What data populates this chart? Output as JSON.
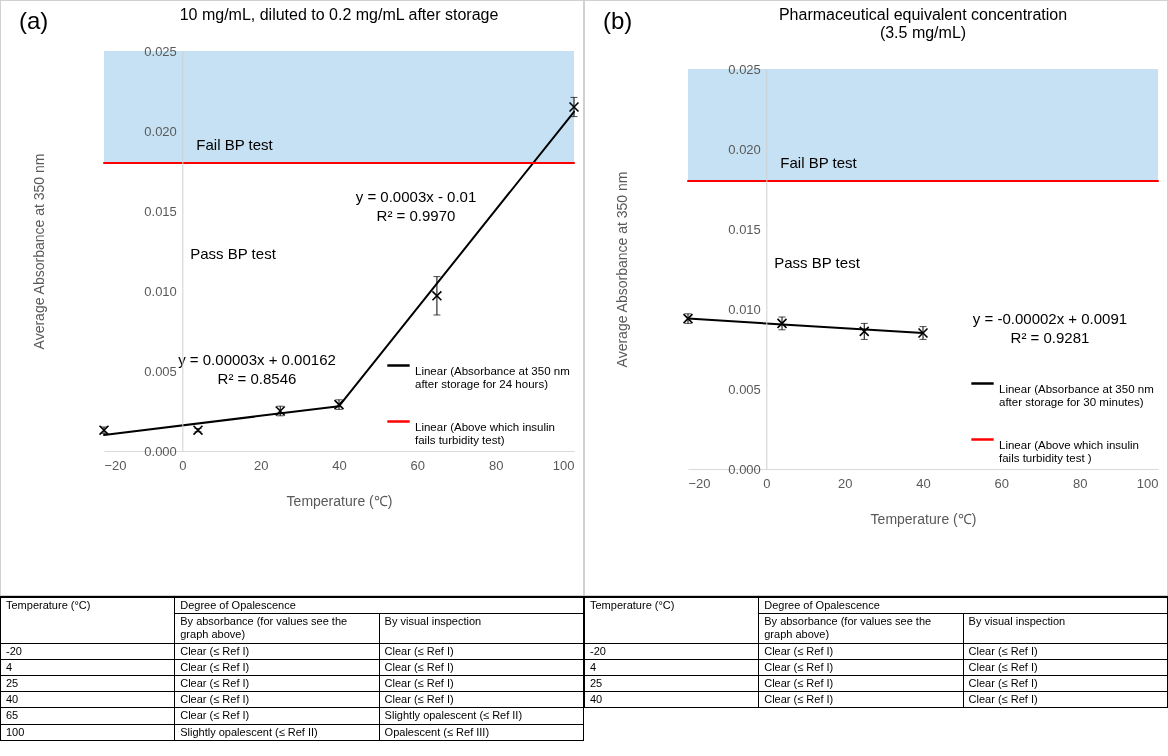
{
  "chart_data": [
    {
      "type": "scatter",
      "title": "10 mg/mL, diluted to 0.2 mg/mL after storage",
      "xlabel": "Temperature (℃)",
      "ylabel": "Average  Absorbance at 350 nm",
      "xlim": [
        -20,
        100
      ],
      "xticks": [
        -20,
        0,
        20,
        40,
        60,
        80,
        100
      ],
      "ylim": [
        0,
        0.025
      ],
      "yticks": [
        {
          "value": 0,
          "label": "0.000"
        },
        {
          "value": 0.005,
          "label": "0.005"
        },
        {
          "value": 0.01,
          "label": "0.010"
        },
        {
          "value": 0.015,
          "label": "0.015"
        },
        {
          "value": 0.02,
          "label": "0.020"
        },
        {
          "value": 0.025,
          "label": "0.025"
        }
      ],
      "legend": "bottom right",
      "bands": [
        {
          "axis": "y",
          "from": 0.018,
          "to": 0.025,
          "label": "Fail BP test",
          "color": "#c5e1f3"
        }
      ],
      "annotations": [
        "(a)",
        "Pass BP test",
        "y = 0.0003x - 0.01",
        "R² = 0.9970",
        "y = 0.00003x + 0.00162",
        "R² = 0.8546"
      ],
      "series": [
        {
          "type": "scatter",
          "color": "#000000",
          "marker": "cross",
          "x": [
            -20,
            4,
            25,
            40,
            65,
            100
          ],
          "values": [
            0.0013,
            0.0013,
            0.0025,
            0.0029,
            0.0097,
            0.0215
          ],
          "errors": [
            0.0002,
            0.0001,
            0.0003,
            0.0003,
            0.0012,
            0.0006
          ]
        },
        {
          "type": "line",
          "name": "Linear (Absorbance at 350 nm after storage for 24 hours)",
          "color": "#000000",
          "x": [
            -20,
            40,
            100
          ],
          "values": [
            0.001,
            0.0028,
            0.0212
          ]
        },
        {
          "type": "line",
          "name": "Linear (Above which insulin fails turbidity test)",
          "color": "#ff0000",
          "x": [
            -20,
            100
          ],
          "values": [
            0.018,
            0.018
          ]
        }
      ]
    },
    {
      "type": "scatter",
      "title": "Pharmaceutical equivalent concentration",
      "subtitle": "(3.5 mg/mL)",
      "xlabel": "Temperature (℃)",
      "ylabel": "Average  Absorbance at 350 nm",
      "xlim": [
        -20,
        100
      ],
      "xticks": [
        -20,
        0,
        20,
        40,
        60,
        80,
        100
      ],
      "ylim": [
        0,
        0.025
      ],
      "yticks": [
        {
          "value": 0,
          "label": "0.000"
        },
        {
          "value": 0.005,
          "label": "0.005"
        },
        {
          "value": 0.01,
          "label": "0.010"
        },
        {
          "value": 0.015,
          "label": "0.015"
        },
        {
          "value": 0.02,
          "label": "0.020"
        },
        {
          "value": 0.025,
          "label": "0.025"
        }
      ],
      "legend": "bottom right",
      "bands": [
        {
          "axis": "y",
          "from": 0.018,
          "to": 0.025,
          "label": "Fail BP test",
          "color": "#c5e1f3"
        }
      ],
      "annotations": [
        "(b)",
        "Pass BP test",
        "y = -0.00002x + 0.0091",
        "R² = 0.9281"
      ],
      "series": [
        {
          "type": "scatter",
          "color": "#000000",
          "marker": "cross",
          "x": [
            -20,
            4,
            25,
            40
          ],
          "values": [
            0.0094,
            0.0091,
            0.0086,
            0.0085
          ],
          "errors": [
            0.0003,
            0.0004,
            0.0005,
            0.0004
          ]
        },
        {
          "type": "line",
          "name": "Linear (Absorbance at 350 nm after storage for 30 minutes)",
          "color": "#000000",
          "x": [
            -20,
            40
          ],
          "values": [
            0.0094,
            0.0085
          ]
        },
        {
          "type": "line",
          "name": "Linear (Above which insulin fails turbidity test )",
          "color": "#ff0000",
          "x": [
            -20,
            100
          ],
          "values": [
            0.018,
            0.018
          ]
        }
      ]
    },
    {
      "type": "other",
      "annotations": [
        "Temperature  (°C)",
        "Degree of Opalescence",
        "By absorbance (for values see the graph above)",
        "By visual inspection",
        "-20",
        "Clear (≤ Ref I)",
        "Clear (≤ Ref I)",
        "4",
        "Clear (≤ Ref I)",
        "Clear (≤ Ref I)",
        "25",
        "Clear (≤ Ref I)",
        "Clear (≤ Ref I)",
        "40",
        "Clear (≤ Ref I)",
        "Clear (≤ Ref I)",
        "65",
        "Clear (≤ Ref I)",
        "Slightly opalescent (≤ Ref II)",
        "100",
        "Slightly opalescent (≤ Ref II)",
        "Opalescent (≤ Ref III)"
      ]
    },
    {
      "type": "other",
      "annotations": [
        "Temperature (°C)",
        "Degree of Opalescence",
        "By absorbance (for values see the graph above)",
        "By visual inspection",
        "-20",
        "Clear (≤ Ref I)",
        "Clear (≤ Ref I)",
        "4",
        "Clear (≤ Ref I)",
        "Clear (≤ Ref I)",
        "25",
        "Clear (≤ Ref I)",
        "Clear (≤ Ref I)",
        "40",
        "Clear (≤ Ref I)",
        "Clear (≤ Ref I)"
      ]
    }
  ]
}
